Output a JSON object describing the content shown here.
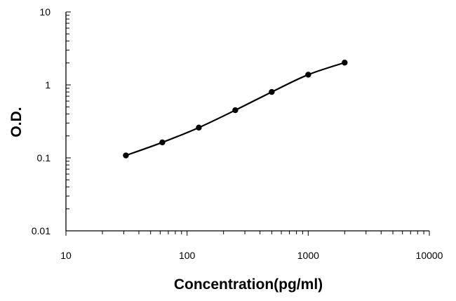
{
  "chart_data": {
    "type": "line",
    "title": "",
    "xlabel": "Concentration(pg/ml)",
    "ylabel": "O.D.",
    "x_scale": "log",
    "y_scale": "log",
    "xlim": [
      10,
      10000
    ],
    "ylim": [
      0.01,
      10
    ],
    "x_ticks": [
      "10",
      "100",
      "1000",
      "10000"
    ],
    "y_ticks": [
      "0.01",
      "0.1",
      "1",
      "10"
    ],
    "grid": false,
    "legend": "none",
    "series": [
      {
        "color": "#000000",
        "marker": "circle",
        "smooth": true,
        "x": [
          31.25,
          62.5,
          125,
          250,
          500,
          1000,
          2000
        ],
        "y": [
          0.108,
          0.163,
          0.26,
          0.45,
          0.8,
          1.38,
          2.02
        ]
      }
    ]
  }
}
